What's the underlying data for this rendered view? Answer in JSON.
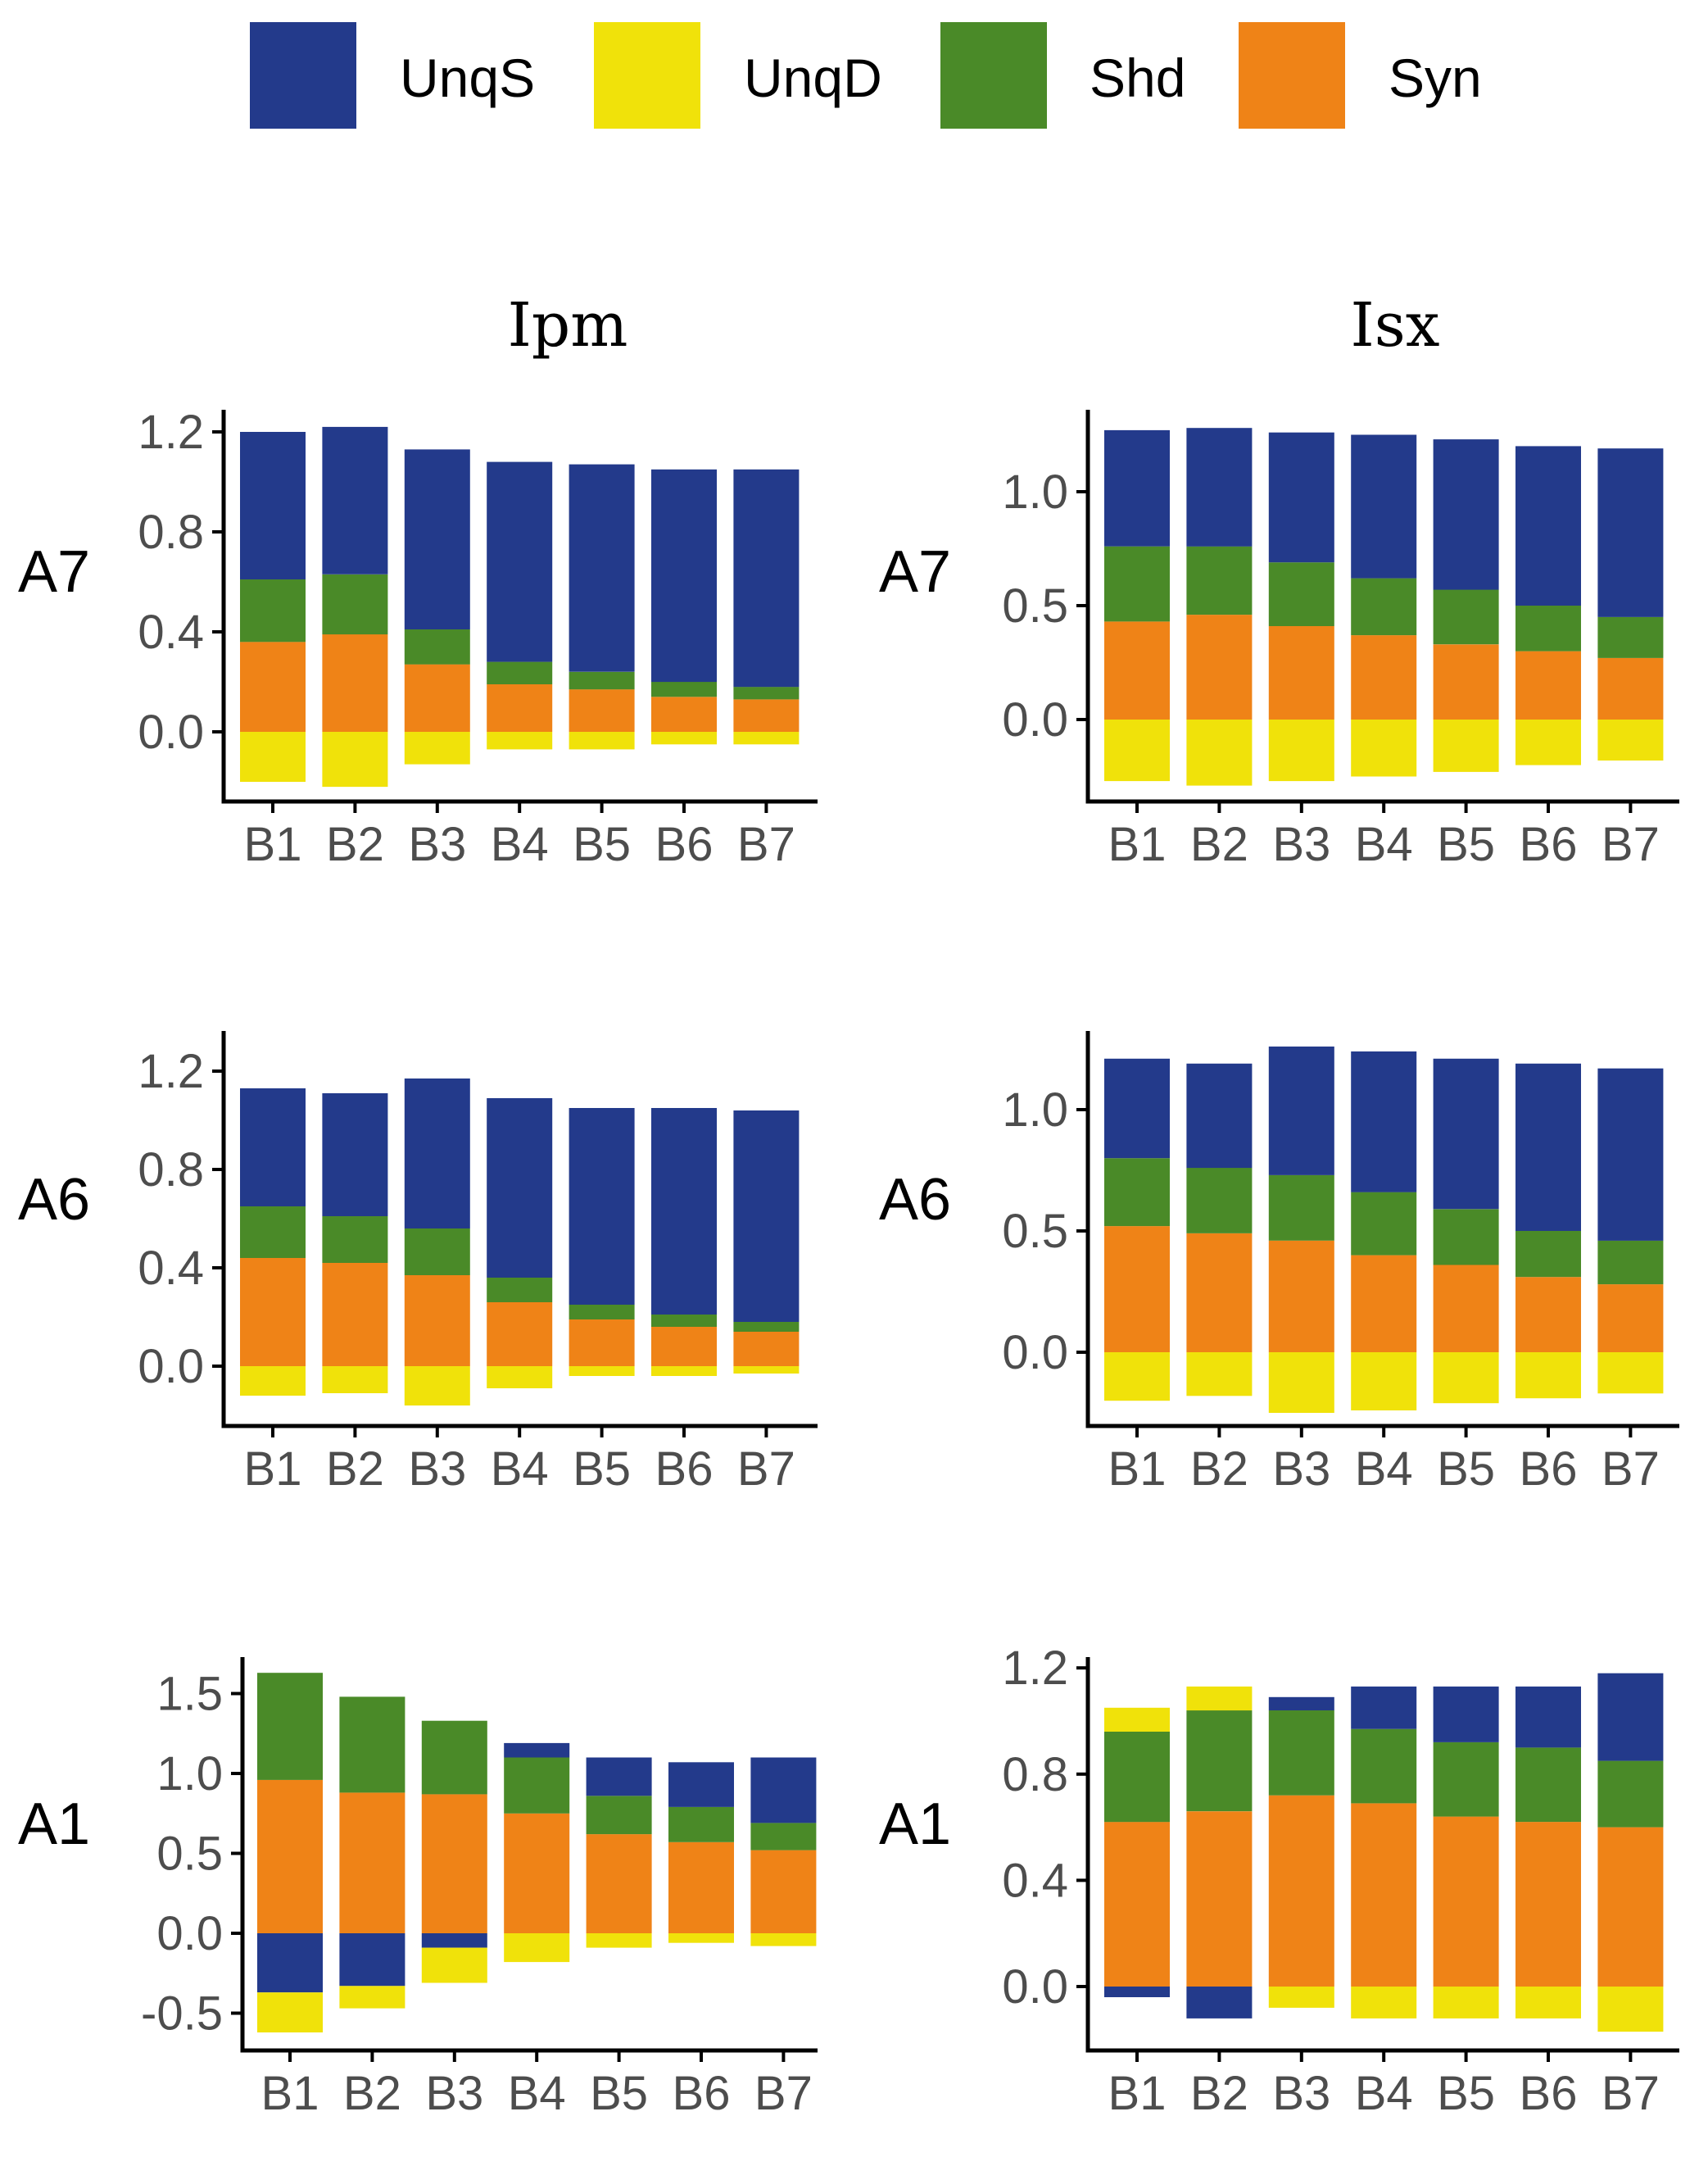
{
  "legend": [
    {
      "name": "UnqS",
      "color": "#233a8b"
    },
    {
      "name": "UnqD",
      "color": "#f0e20a"
    },
    {
      "name": "Shd",
      "color": "#4a8a28"
    },
    {
      "name": "Syn",
      "color": "#ef8317"
    }
  ],
  "chart_data": [
    {
      "type": "bar",
      "stacked": "diverging",
      "column": "Ipm",
      "row": "A7",
      "categories": [
        "B1",
        "B2",
        "B3",
        "B4",
        "B5",
        "B6",
        "B7"
      ],
      "ylim": [
        -0.28,
        1.28
      ],
      "yticks": [
        0.0,
        0.4,
        0.8,
        1.2
      ],
      "series": [
        {
          "name": "Syn",
          "values": [
            0.36,
            0.39,
            0.27,
            0.19,
            0.17,
            0.14,
            0.13
          ]
        },
        {
          "name": "Shd",
          "values": [
            0.25,
            0.24,
            0.14,
            0.09,
            0.07,
            0.06,
            0.05
          ]
        },
        {
          "name": "UnqS",
          "values": [
            0.59,
            0.59,
            0.72,
            0.8,
            0.83,
            0.85,
            0.87
          ]
        },
        {
          "name": "UnqD",
          "values": [
            -0.2,
            -0.22,
            -0.13,
            -0.07,
            -0.07,
            -0.05,
            -0.05
          ]
        }
      ]
    },
    {
      "type": "bar",
      "stacked": "diverging",
      "column": "Isx",
      "row": "A7",
      "categories": [
        "B1",
        "B2",
        "B3",
        "B4",
        "B5",
        "B6",
        "B7"
      ],
      "ylim": [
        -0.35,
        1.35
      ],
      "yticks": [
        0.0,
        0.5,
        1.0
      ],
      "series": [
        {
          "name": "Syn",
          "values": [
            0.43,
            0.46,
            0.41,
            0.37,
            0.33,
            0.3,
            0.27
          ]
        },
        {
          "name": "Shd",
          "values": [
            0.33,
            0.3,
            0.28,
            0.25,
            0.24,
            0.2,
            0.18
          ]
        },
        {
          "name": "UnqS",
          "values": [
            0.51,
            0.52,
            0.57,
            0.63,
            0.66,
            0.7,
            0.74
          ]
        },
        {
          "name": "UnqD",
          "values": [
            -0.27,
            -0.29,
            -0.27,
            -0.25,
            -0.23,
            -0.2,
            -0.18
          ]
        }
      ]
    },
    {
      "type": "bar",
      "stacked": "diverging",
      "column": "Ipm",
      "row": "A6",
      "categories": [
        "B1",
        "B2",
        "B3",
        "B4",
        "B5",
        "B6",
        "B7"
      ],
      "ylim": [
        -0.24,
        1.24
      ],
      "yticks": [
        0.0,
        0.4,
        0.8,
        1.2
      ],
      "series": [
        {
          "name": "Syn",
          "values": [
            0.44,
            0.42,
            0.37,
            0.26,
            0.19,
            0.16,
            0.14
          ]
        },
        {
          "name": "Shd",
          "values": [
            0.21,
            0.19,
            0.19,
            0.1,
            0.06,
            0.05,
            0.04
          ]
        },
        {
          "name": "UnqS",
          "values": [
            0.48,
            0.5,
            0.61,
            0.73,
            0.8,
            0.84,
            0.86
          ]
        },
        {
          "name": "UnqD",
          "values": [
            -0.12,
            -0.11,
            -0.16,
            -0.09,
            -0.04,
            -0.04,
            -0.03
          ]
        }
      ]
    },
    {
      "type": "bar",
      "stacked": "diverging",
      "column": "Isx",
      "row": "A6",
      "categories": [
        "B1",
        "B2",
        "B3",
        "B4",
        "B5",
        "B6",
        "B7"
      ],
      "ylim": [
        -0.32,
        1.32
      ],
      "yticks": [
        0.0,
        0.5,
        1.0
      ],
      "series": [
        {
          "name": "Syn",
          "values": [
            0.52,
            0.49,
            0.46,
            0.4,
            0.36,
            0.31,
            0.28
          ]
        },
        {
          "name": "Shd",
          "values": [
            0.28,
            0.27,
            0.27,
            0.26,
            0.23,
            0.19,
            0.18
          ]
        },
        {
          "name": "UnqS",
          "values": [
            0.41,
            0.43,
            0.53,
            0.58,
            0.62,
            0.69,
            0.71
          ]
        },
        {
          "name": "UnqD",
          "values": [
            -0.2,
            -0.18,
            -0.25,
            -0.24,
            -0.21,
            -0.19,
            -0.17
          ]
        }
      ]
    },
    {
      "type": "bar",
      "stacked": "diverging",
      "column": "Ipm",
      "row": "A1",
      "categories": [
        "B1",
        "B2",
        "B3",
        "B4",
        "B5",
        "B6",
        "B7"
      ],
      "ylim": [
        -0.7,
        1.7
      ],
      "yticks": [
        -0.5,
        0.0,
        0.5,
        1.0,
        1.5
      ],
      "series": [
        {
          "name": "Syn",
          "values": [
            0.96,
            0.88,
            0.87,
            0.75,
            0.62,
            0.57,
            0.52
          ]
        },
        {
          "name": "Shd",
          "values": [
            0.67,
            0.6,
            0.46,
            0.35,
            0.24,
            0.22,
            0.17
          ]
        },
        {
          "name": "UnqS",
          "values": [
            -0.37,
            -0.33,
            -0.09,
            0.09,
            0.24,
            0.28,
            0.41
          ]
        },
        {
          "name": "UnqD",
          "values": [
            -0.25,
            -0.14,
            -0.22,
            -0.18,
            -0.09,
            -0.06,
            -0.08
          ]
        }
      ]
    },
    {
      "type": "bar",
      "stacked": "diverging",
      "column": "Isx",
      "row": "A1",
      "categories": [
        "B1",
        "B2",
        "B3",
        "B4",
        "B5",
        "B6",
        "B7"
      ],
      "ylim": [
        -0.18,
        1.24
      ],
      "yticks": [
        0.0,
        0.4,
        0.8,
        1.2
      ],
      "series": [
        {
          "name": "Syn",
          "values": [
            0.62,
            0.66,
            0.72,
            0.69,
            0.64,
            0.62,
            0.6
          ]
        },
        {
          "name": "Shd",
          "values": [
            0.34,
            0.38,
            0.32,
            0.28,
            0.28,
            0.28,
            0.25
          ]
        },
        {
          "name": "UnqS",
          "values": [
            -0.04,
            -0.12,
            0.05,
            0.16,
            0.21,
            0.23,
            0.33
          ]
        },
        {
          "name": "UnqD",
          "values": [
            0.09,
            0.09,
            -0.08,
            -0.12,
            -0.12,
            -0.12,
            -0.17
          ]
        }
      ]
    }
  ]
}
